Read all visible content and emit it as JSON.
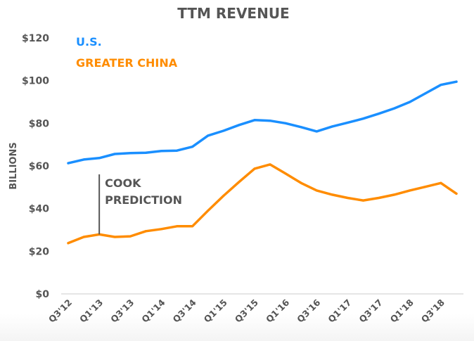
{
  "chart_data": {
    "type": "line",
    "title": "TTM REVENUE",
    "xlabel": "",
    "ylabel": "BILLIONS",
    "ylim": [
      0,
      120
    ],
    "yticks": [
      0,
      20,
      40,
      60,
      80,
      100,
      120
    ],
    "ytick_labels": [
      "$0",
      "$20",
      "$40",
      "$60",
      "$80",
      "$100",
      "$120"
    ],
    "x": [
      "Q3'12",
      "Q4'12",
      "Q1'13",
      "Q2'13",
      "Q3'13",
      "Q4'13",
      "Q1'14",
      "Q2'14",
      "Q3'14",
      "Q4'14",
      "Q1'15",
      "Q2'15",
      "Q3'15",
      "Q4'15",
      "Q1'16",
      "Q2'16",
      "Q3'16",
      "Q4'16",
      "Q1'17",
      "Q2'17",
      "Q3'17",
      "Q4'17",
      "Q1'18",
      "Q2'18",
      "Q3'18",
      "Q4'18"
    ],
    "xtick_labels": [
      "Q3'12",
      "Q1'13",
      "Q3'13",
      "Q1'14",
      "Q3'14",
      "Q1'15",
      "Q3'15",
      "Q1'16",
      "Q3'16",
      "Q1'17",
      "Q3'17",
      "Q1'18",
      "Q3'18"
    ],
    "grid": false,
    "legend_position": "top-left",
    "series": [
      {
        "name": "U.S.",
        "color": "#1A8FFF",
        "values": [
          61.3,
          63.0,
          63.7,
          65.6,
          66.0,
          66.2,
          67.0,
          67.2,
          69.0,
          74.2,
          76.5,
          79.2,
          81.5,
          81.2,
          80.0,
          78.2,
          76.2,
          78.5,
          80.3,
          82.2,
          84.5,
          87.0,
          90.0,
          94.0,
          98.0,
          99.5
        ]
      },
      {
        "name": "GREATER CHINA",
        "color": "#FF8C00",
        "values": [
          23.8,
          26.7,
          27.9,
          26.7,
          27.0,
          29.4,
          30.4,
          31.7,
          31.7,
          39.0,
          46.0,
          52.5,
          58.7,
          60.7,
          56.4,
          52.0,
          48.5,
          46.5,
          45.0,
          43.8,
          45.0,
          46.5,
          48.5,
          50.2,
          52.0,
          47.0
        ]
      }
    ],
    "annotations": [
      {
        "lines": [
          "COOK",
          "PREDICTION"
        ],
        "at": "Q1'13",
        "series": "GREATER CHINA"
      }
    ]
  }
}
